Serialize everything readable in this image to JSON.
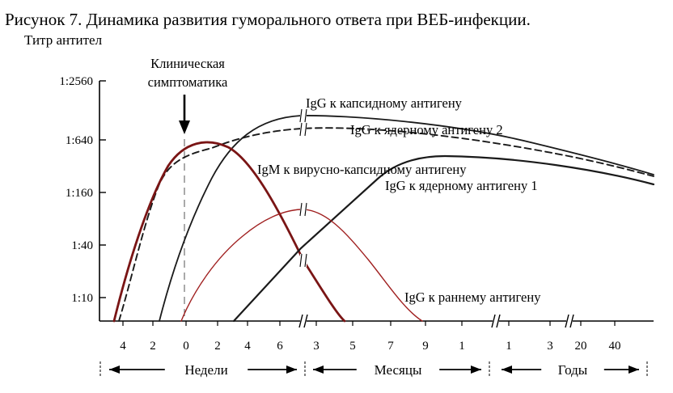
{
  "chart_data": {
    "type": "line",
    "title": "Рисунок 7. Динамика развития гуморального ответа при  ВЕБ-инфекции.",
    "ylabel": "Титр антител",
    "y_scale": "log4",
    "y_ticks": [
      "1:10",
      "1:40",
      "1:160",
      "1:640",
      "1:2560"
    ],
    "x_axis": {
      "segments": [
        {
          "label": "Недели",
          "ticks": [
            "4",
            "2",
            "0",
            "2",
            "4",
            "6"
          ]
        },
        {
          "label": "Месяцы",
          "ticks": [
            "3",
            "5",
            "7",
            "9",
            "1"
          ]
        },
        {
          "label": "Годы",
          "ticks": [
            "1",
            "3",
            "20",
            "40"
          ]
        }
      ]
    },
    "annotations": {
      "clinical": [
        "Клиническая",
        "симптоматика"
      ]
    },
    "series": [
      {
        "name": "IgG к капсидному антигену",
        "color": "#1a1a1a",
        "style": "solid",
        "weight": "medium"
      },
      {
        "name": "IgG к ядерному антигену 2",
        "color": "#1a1a1a",
        "style": "dashed",
        "weight": "medium"
      },
      {
        "name": "IgM к вирусно-капсидному антигену",
        "color": "#7a1515",
        "style": "solid",
        "weight": "bold"
      },
      {
        "name": "IgG к ядерному антигену 1",
        "color": "#1a1a1a",
        "style": "solid",
        "weight": "bold"
      },
      {
        "name": "IgG к раннему антигену",
        "color": "#a02020",
        "style": "solid",
        "weight": "thin"
      }
    ]
  }
}
